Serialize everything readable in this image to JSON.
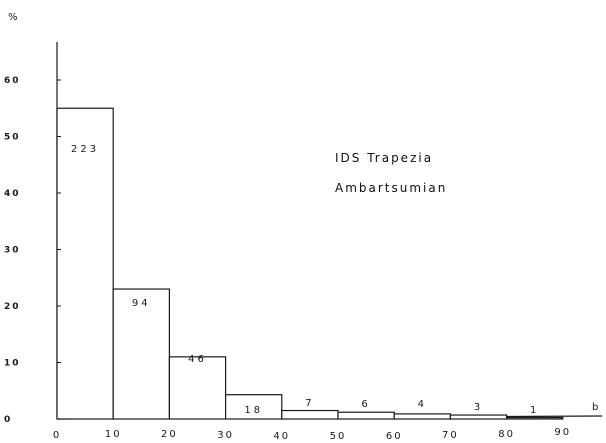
{
  "chart_data": {
    "type": "bar",
    "title": "",
    "ylabel": "%",
    "xlabel": "b",
    "ylim": [
      0,
      65
    ],
    "xlim": [
      0,
      97
    ],
    "grid": false,
    "legend": "none",
    "bins": [
      {
        "x0": 0,
        "x1": 10,
        "value": 55,
        "label": "223"
      },
      {
        "x0": 10,
        "x1": 20,
        "value": 23,
        "label": "94"
      },
      {
        "x0": 20,
        "x1": 30,
        "value": 11,
        "label": "46"
      },
      {
        "x0": 30,
        "x1": 40,
        "value": 4.3,
        "label": "18"
      },
      {
        "x0": 40,
        "x1": 50,
        "value": 1.5,
        "label": "7"
      },
      {
        "x0": 50,
        "x1": 60,
        "value": 1.2,
        "label": "6"
      },
      {
        "x0": 60,
        "x1": 70,
        "value": 0.9,
        "label": "4"
      },
      {
        "x0": 70,
        "x1": 80,
        "value": 0.7,
        "label": "3"
      },
      {
        "x0": 80,
        "x1": 90,
        "value": 0.25,
        "label": "1"
      }
    ],
    "x_ticks": [
      "0",
      "10",
      "20",
      "30",
      "40",
      "50",
      "60",
      "70",
      "80",
      "90"
    ],
    "y_ticks": [
      "0",
      "10",
      "20",
      "30",
      "40",
      "50",
      "60"
    ],
    "annotations": [
      "IDS Trapezia",
      "Ambartsumian"
    ]
  }
}
